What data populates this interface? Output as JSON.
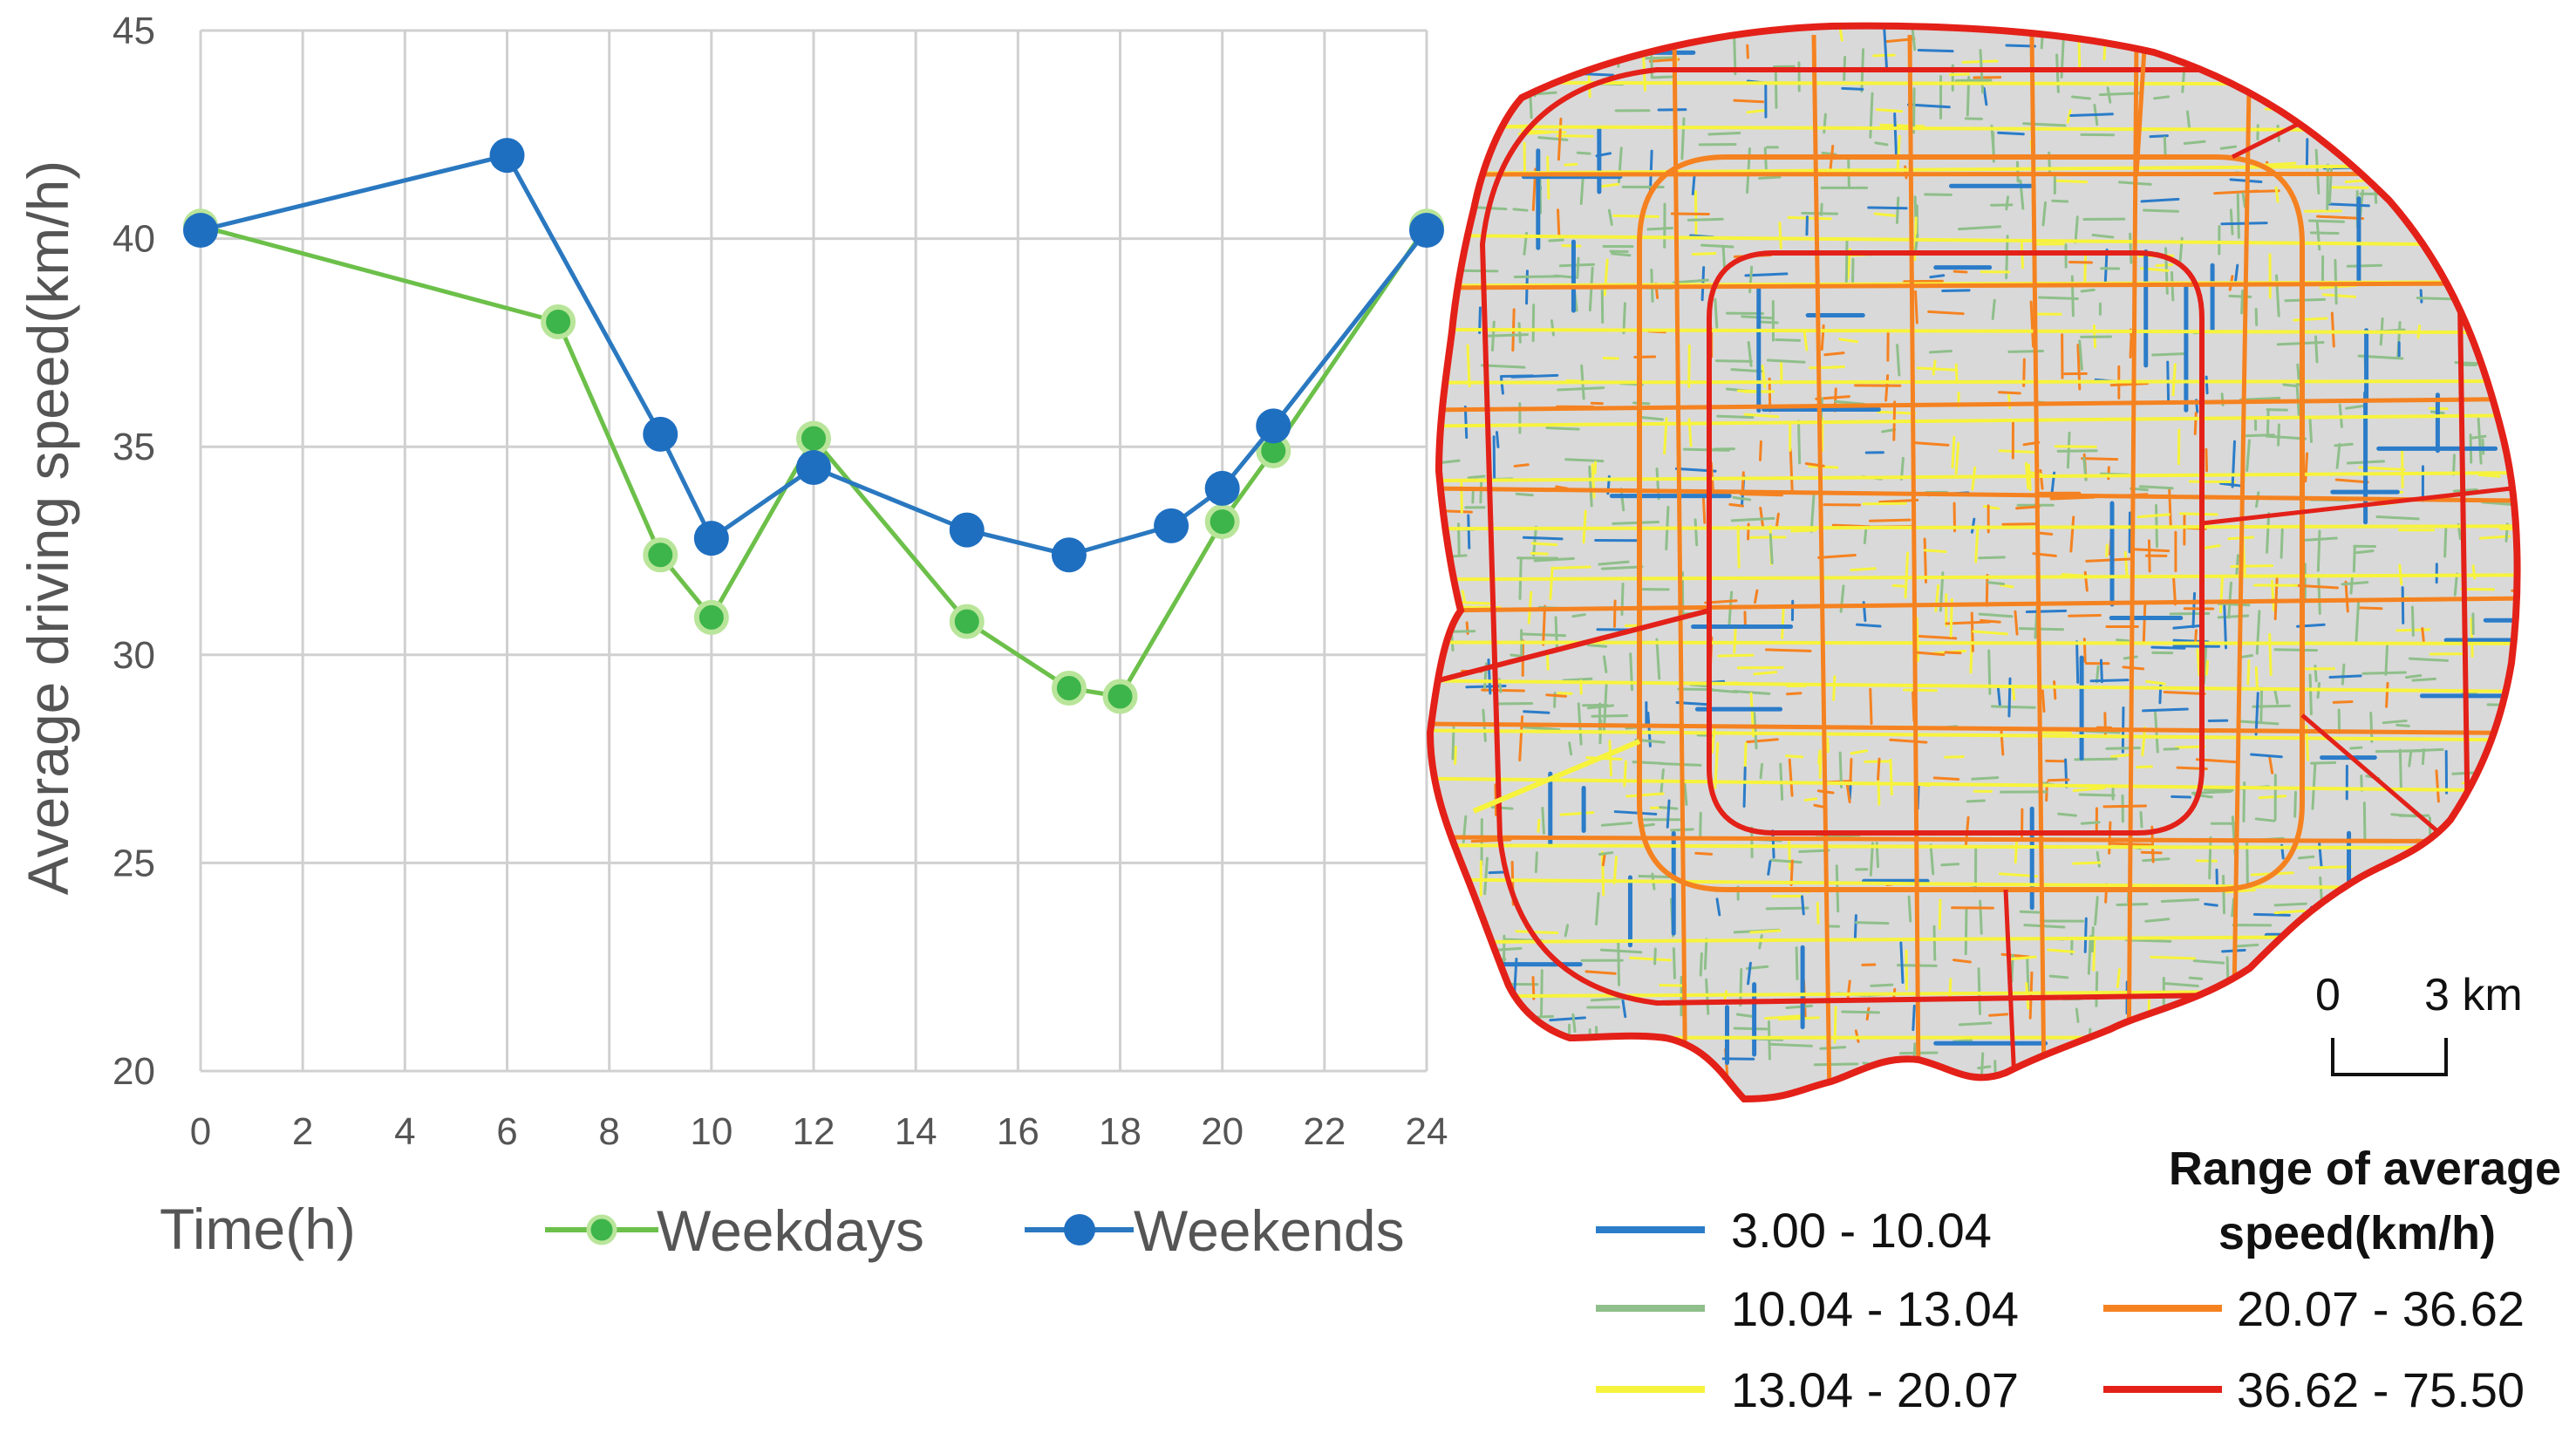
{
  "chart_data": {
    "type": "line",
    "xlabel": "Time(h)",
    "ylabel": "Average driving speed(km/h)",
    "xlim": [
      0,
      24
    ],
    "ylim": [
      20,
      45
    ],
    "x_ticks": [
      "0",
      "2",
      "4",
      "6",
      "8",
      "10",
      "12",
      "14",
      "16",
      "18",
      "20",
      "22",
      "24"
    ],
    "y_ticks": [
      "20",
      "25",
      "30",
      "35",
      "40",
      "45"
    ],
    "grid": true,
    "legend_position": "bottom",
    "series": [
      {
        "name": "Weekdays",
        "color": "#6cc04a",
        "marker_color": "#3db54a",
        "points": [
          {
            "x": 0,
            "y": 40.3
          },
          {
            "x": 7,
            "y": 38.0
          },
          {
            "x": 9,
            "y": 32.4
          },
          {
            "x": 10,
            "y": 30.9
          },
          {
            "x": 12,
            "y": 35.2
          },
          {
            "x": 15,
            "y": 30.8
          },
          {
            "x": 17,
            "y": 29.2
          },
          {
            "x": 18,
            "y": 29.0
          },
          {
            "x": 20,
            "y": 33.2
          },
          {
            "x": 21,
            "y": 34.9
          },
          {
            "x": 24,
            "y": 40.3
          }
        ]
      },
      {
        "name": "Weekends",
        "color": "#2a78c0",
        "marker_color": "#1f6fc0",
        "points": [
          {
            "x": 0,
            "y": 40.2
          },
          {
            "x": 6,
            "y": 42.0
          },
          {
            "x": 9,
            "y": 35.3
          },
          {
            "x": 10,
            "y": 32.8
          },
          {
            "x": 12,
            "y": 34.5
          },
          {
            "x": 15,
            "y": 33.0
          },
          {
            "x": 17,
            "y": 32.4
          },
          {
            "x": 19,
            "y": 33.1
          },
          {
            "x": 20,
            "y": 34.0
          },
          {
            "x": 21,
            "y": 35.5
          },
          {
            "x": 24,
            "y": 40.2
          }
        ]
      }
    ]
  },
  "map": {
    "scale_bar": {
      "left_label": "0",
      "right_label": "3 km"
    },
    "legend": {
      "title_line1": "Range of average",
      "title_line2": "speed(km/h)",
      "items": [
        {
          "label": "3.00 - 10.04",
          "color": "#2b7cc9"
        },
        {
          "label": "10.04 - 13.04",
          "color": "#8fbf8a"
        },
        {
          "label": "13.04 - 20.07",
          "color": "#f7f33c"
        },
        {
          "label": "20.07 - 36.62",
          "color": "#f58220"
        },
        {
          "label": "36.62 - 75.50",
          "color": "#e32119"
        }
      ]
    },
    "land_color": "#d9d9d9"
  }
}
